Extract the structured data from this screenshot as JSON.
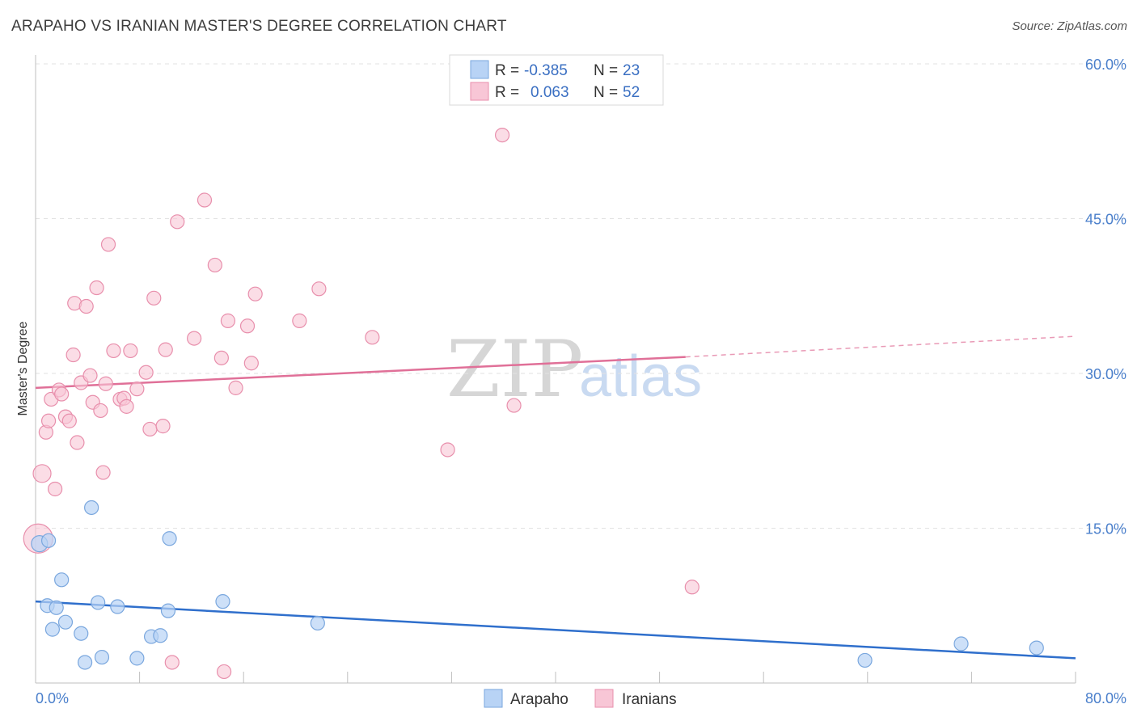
{
  "header": {
    "title": "ARAPAHO VS IRANIAN MASTER'S DEGREE CORRELATION CHART",
    "source": "Source: ZipAtlas.com"
  },
  "watermark": {
    "zip": "ZIP",
    "atlas": "atlas"
  },
  "colors": {
    "arapaho_fill": "#b8d3f5",
    "arapaho_stroke": "#7aa7de",
    "arapaho_line": "#2f6fcc",
    "iranians_fill": "#f8c6d6",
    "iranians_stroke": "#e88fac",
    "iranians_line": "#e07098",
    "tick_label": "#4a7fcb",
    "grid": "#e2e2e2"
  },
  "legend": {
    "rows": [
      {
        "r_label": "R =",
        "r_value": "-0.385",
        "n_label": "N =",
        "n_value": "23"
      },
      {
        "r_label": "R =",
        "r_value": "0.063",
        "n_label": "N =",
        "n_value": "52"
      }
    ]
  },
  "chart_data": {
    "type": "scatter",
    "title": "ARAPAHO VS IRANIAN MASTER'S DEGREE CORRELATION CHART",
    "xlabel": "",
    "ylabel": "Master's Degree",
    "xlim": [
      0,
      80
    ],
    "ylim": [
      0,
      60
    ],
    "x_tick_labels": [
      "0.0%",
      "80.0%"
    ],
    "y_ticks": [
      15,
      30,
      45,
      60
    ],
    "y_tick_labels": [
      "15.0%",
      "30.0%",
      "45.0%",
      "60.0%"
    ],
    "grid": true,
    "legend_position": "bottom",
    "series": [
      {
        "name": "Arapaho",
        "r": -0.385,
        "n": 23,
        "points": [
          [
            0.3,
            13.5
          ],
          [
            0.9,
            7.5
          ],
          [
            1.0,
            13.8
          ],
          [
            1.3,
            5.2
          ],
          [
            1.6,
            7.3
          ],
          [
            2.0,
            10.0
          ],
          [
            2.3,
            5.9
          ],
          [
            3.5,
            4.8
          ],
          [
            3.8,
            2.0
          ],
          [
            4.3,
            17.0
          ],
          [
            4.8,
            7.8
          ],
          [
            5.1,
            2.5
          ],
          [
            6.3,
            7.4
          ],
          [
            7.8,
            2.4
          ],
          [
            8.9,
            4.5
          ],
          [
            9.6,
            4.6
          ],
          [
            10.2,
            7.0
          ],
          [
            10.3,
            14.0
          ],
          [
            14.4,
            7.9
          ],
          [
            21.7,
            5.8
          ],
          [
            63.8,
            2.2
          ],
          [
            71.2,
            3.8
          ],
          [
            77.0,
            3.4
          ]
        ],
        "trend": {
          "x": [
            0,
            80
          ],
          "y": [
            7.9,
            2.4
          ],
          "style": "solid"
        }
      },
      {
        "name": "Iranians",
        "r": 0.063,
        "n": 52,
        "points": [
          [
            0.2,
            14.0
          ],
          [
            0.5,
            20.3
          ],
          [
            0.8,
            24.3
          ],
          [
            1.0,
            25.4
          ],
          [
            1.2,
            27.5
          ],
          [
            1.5,
            18.8
          ],
          [
            1.8,
            28.4
          ],
          [
            2.0,
            28.0
          ],
          [
            2.3,
            25.8
          ],
          [
            2.6,
            25.4
          ],
          [
            2.9,
            31.8
          ],
          [
            3.0,
            36.8
          ],
          [
            3.2,
            23.3
          ],
          [
            3.5,
            29.1
          ],
          [
            3.9,
            36.5
          ],
          [
            4.2,
            29.8
          ],
          [
            4.4,
            27.2
          ],
          [
            4.7,
            38.3
          ],
          [
            5.0,
            26.4
          ],
          [
            5.2,
            20.4
          ],
          [
            5.4,
            29.0
          ],
          [
            5.6,
            42.5
          ],
          [
            6.0,
            32.2
          ],
          [
            6.5,
            27.5
          ],
          [
            6.8,
            27.6
          ],
          [
            7.0,
            26.8
          ],
          [
            7.3,
            32.2
          ],
          [
            7.8,
            28.5
          ],
          [
            8.5,
            30.1
          ],
          [
            8.8,
            24.6
          ],
          [
            9.1,
            37.3
          ],
          [
            9.8,
            24.9
          ],
          [
            10.0,
            32.3
          ],
          [
            10.5,
            2.0
          ],
          [
            10.9,
            44.7
          ],
          [
            12.2,
            33.4
          ],
          [
            13.0,
            46.8
          ],
          [
            13.8,
            40.5
          ],
          [
            14.3,
            31.5
          ],
          [
            14.5,
            1.1
          ],
          [
            14.8,
            35.1
          ],
          [
            15.4,
            28.6
          ],
          [
            16.3,
            34.6
          ],
          [
            16.6,
            31.0
          ],
          [
            16.9,
            37.7
          ],
          [
            20.3,
            35.1
          ],
          [
            21.8,
            38.2
          ],
          [
            25.9,
            33.5
          ],
          [
            31.7,
            22.6
          ],
          [
            35.9,
            53.1
          ],
          [
            36.8,
            26.9
          ],
          [
            50.5,
            9.3
          ]
        ],
        "trend": {
          "x": [
            0,
            50
          ],
          "y": [
            28.6,
            31.6
          ],
          "extended_dashed_to": [
            80,
            33.6
          ]
        }
      }
    ]
  }
}
